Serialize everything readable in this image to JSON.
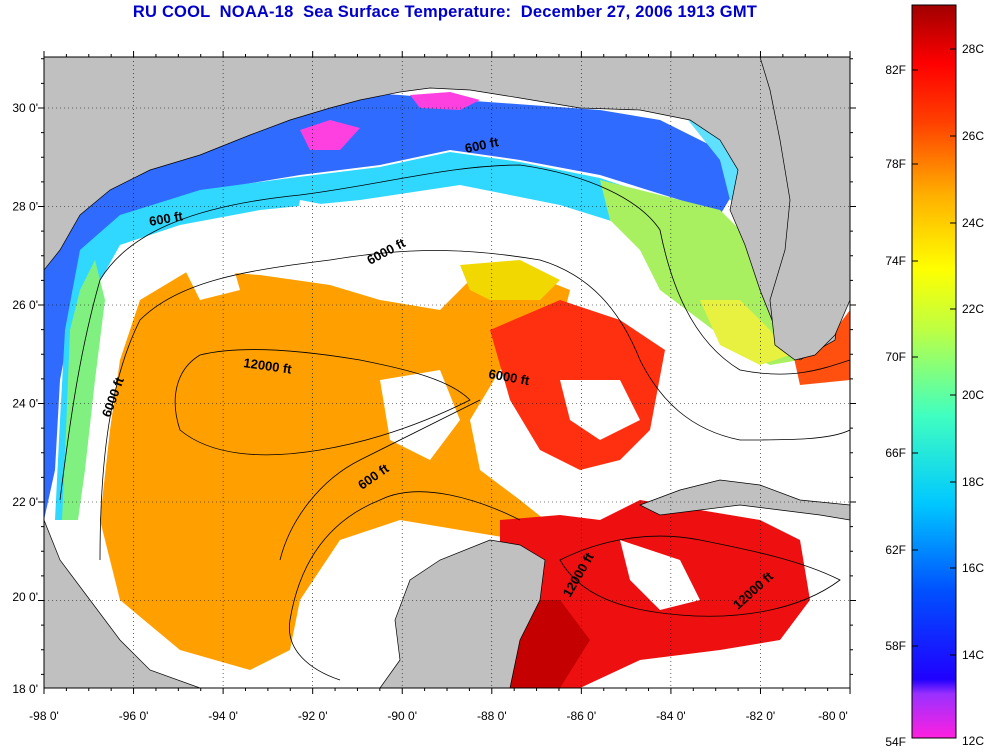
{
  "title": "RU COOL  NOAA-18  Sea Surface Temperature:  December 27, 2006 1913 GMT",
  "map": {
    "lon_ticks": [
      "-98 0'",
      "-96 0'",
      "-94 0'",
      "-92 0'",
      "-90 0'",
      "-88 0'",
      "-86 0'",
      "-84 0'",
      "-82 0'",
      "-80 0'"
    ],
    "lat_ticks": [
      "30 0'",
      "28 0'",
      "26 0'",
      "24 0'",
      "22 0'",
      "20 0'",
      "18 0'"
    ],
    "lon_range": [
      -98,
      -80
    ],
    "lat_range": [
      18,
      31
    ],
    "grid": "dotted",
    "land_color": "#c0c0c0",
    "contour_labels": [
      "600 ft",
      "600 ft",
      "600 ft",
      "6000 ft",
      "6000 ft",
      "6000 ft",
      "12000 ft",
      "12000 ft",
      "12000 ft"
    ]
  },
  "colorbar": {
    "fahrenheit_labels": [
      "82F",
      "78F",
      "74F",
      "70F",
      "66F",
      "62F",
      "58F",
      "54F"
    ],
    "celsius_labels": [
      "28C",
      "26C",
      "24C",
      "22C",
      "20C",
      "18C",
      "16C",
      "14C",
      "12C"
    ],
    "range_celsius": [
      12,
      29
    ],
    "gradient": [
      "#ff00c0",
      "#8000ff",
      "#0000ff",
      "#0080ff",
      "#00ffff",
      "#80ff80",
      "#ffff00",
      "#ffa000",
      "#ff0000",
      "#a00000"
    ]
  }
}
